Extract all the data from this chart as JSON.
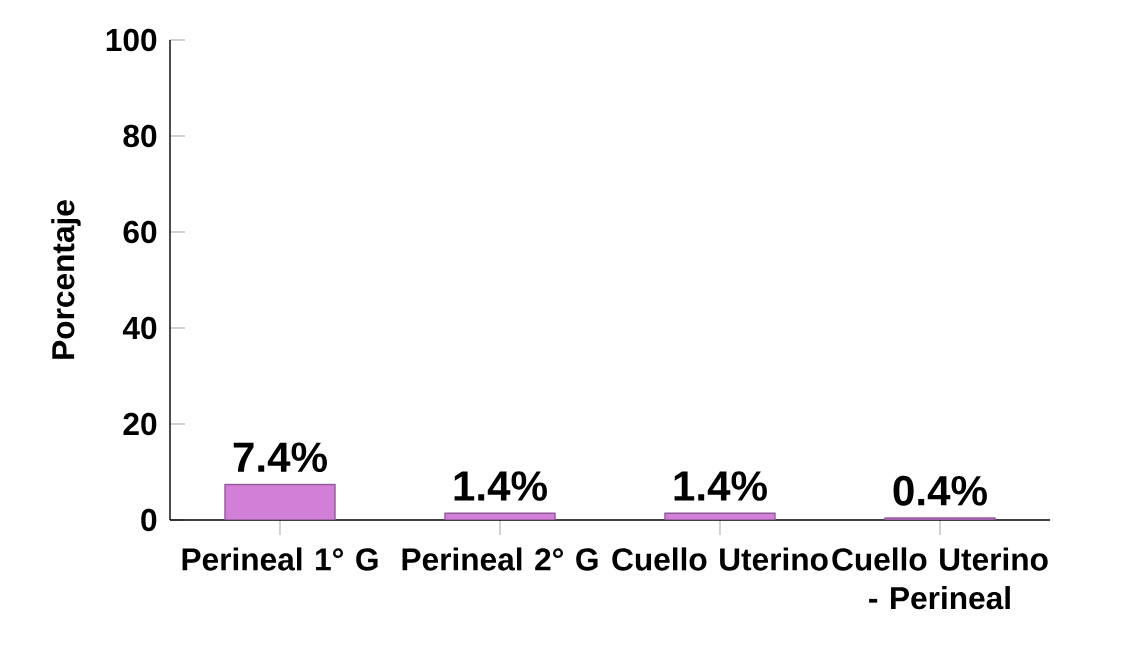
{
  "chart_data": {
    "type": "bar",
    "ylabel": "Porcentaje",
    "categories": [
      "Perineal 1° G",
      "Perineal 2° G",
      "Cuello Uterino",
      "Cuello Uterino - Perineal"
    ],
    "values": [
      7.4,
      1.4,
      1.4,
      0.4
    ],
    "value_labels": [
      "7.4%",
      "1.4%",
      "1.4%",
      "0.4%"
    ],
    "color": "#d27fd8",
    "ylim": [
      0,
      100
    ],
    "yticks": [
      0,
      20,
      40,
      60,
      80,
      100
    ]
  }
}
